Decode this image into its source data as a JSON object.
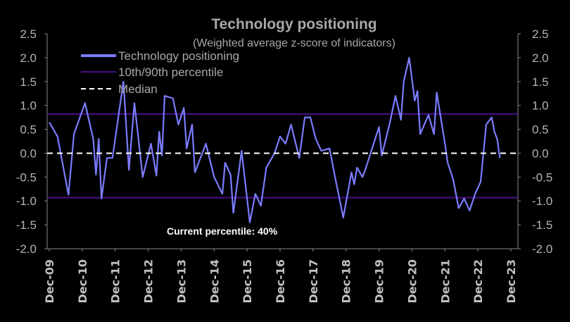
{
  "chart_data": {
    "type": "line",
    "title": "Technology positioning",
    "subtitle": "(Weighted average z-score of indicators)",
    "ylim": [
      -2.0,
      2.5
    ],
    "yticks": [
      "2.5",
      "2.0",
      "1.5",
      "1.0",
      "0.5",
      "0.0",
      "-0.5",
      "-1.0",
      "-1.5",
      "-2.0"
    ],
    "ytick_values": [
      2.5,
      2.0,
      1.5,
      1.0,
      0.5,
      0.0,
      -0.5,
      -1.0,
      -1.5,
      -2.0
    ],
    "xticks": [
      "Dec-09",
      "Dec-10",
      "Dec-11",
      "Dec-12",
      "Dec-13",
      "Dec-14",
      "Dec-15",
      "Dec-16",
      "Dec-17",
      "Dec-18",
      "Dec-19",
      "Dec-20",
      "Dec-21",
      "Dec-22",
      "Dec-23"
    ],
    "dual_y_axis": true,
    "grid": false,
    "legend_placement": "top-left",
    "legend": [
      "Technology positioning",
      "10th/90th percentile",
      "Median"
    ],
    "colors": {
      "series": "#7b7cff",
      "percentile": "#4b0f8a",
      "median": "#ffffff",
      "background": "#000000",
      "text": "#a8a8a8"
    },
    "annotation": "Current percentile: 40%",
    "percentile_10": -0.93,
    "percentile_90": 0.82,
    "median": 0.0,
    "series": [
      {
        "name": "Technology positioning",
        "x": [
          "2009-12",
          "2010-03",
          "2010-07",
          "2010-09",
          "2011-01",
          "2011-04",
          "2011-05",
          "2011-06",
          "2011-07",
          "2011-09",
          "2011-11",
          "2012-03",
          "2012-05",
          "2012-07",
          "2012-10",
          "2013-01",
          "2013-03",
          "2013-04",
          "2013-05",
          "2013-06",
          "2013-09",
          "2013-11",
          "2014-01",
          "2014-02",
          "2014-04",
          "2014-05",
          "2014-09",
          "2014-12",
          "2015-03",
          "2015-04",
          "2015-06",
          "2015-07",
          "2015-10",
          "2016-01",
          "2016-03",
          "2016-05",
          "2016-07",
          "2016-10",
          "2016-12",
          "2017-02",
          "2017-04",
          "2017-07",
          "2017-09",
          "2017-11",
          "2018-01",
          "2018-03",
          "2018-06",
          "2018-08",
          "2018-11",
          "2019-02",
          "2019-03",
          "2019-04",
          "2019-06",
          "2019-07",
          "2019-12",
          "2020-01",
          "2020-04",
          "2020-06",
          "2020-08",
          "2020-09",
          "2020-11",
          "2021-01",
          "2021-02",
          "2021-03",
          "2021-06",
          "2021-08",
          "2021-09",
          "2021-12",
          "2022-01",
          "2022-03",
          "2022-05",
          "2022-07",
          "2022-09",
          "2022-11",
          "2023-01",
          "2023-03",
          "2023-05",
          "2023-06",
          "2023-07",
          "2023-08"
        ],
        "values": [
          0.65,
          0.35,
          -0.87,
          0.4,
          1.05,
          0.3,
          -0.45,
          0.3,
          -0.95,
          -0.1,
          -0.1,
          1.5,
          -0.35,
          1.05,
          -0.5,
          0.2,
          -0.47,
          0.45,
          -0.05,
          1.2,
          1.15,
          0.6,
          0.95,
          0.1,
          0.6,
          -0.4,
          0.2,
          -0.5,
          -0.85,
          -0.2,
          -0.45,
          -1.25,
          0.05,
          -1.45,
          -0.85,
          -1.1,
          -0.3,
          0.0,
          0.35,
          0.2,
          0.6,
          -0.1,
          0.75,
          0.75,
          0.3,
          0.05,
          0.1,
          -0.5,
          -1.35,
          -0.4,
          -0.65,
          -0.3,
          -0.5,
          -0.35,
          0.55,
          -0.05,
          0.65,
          1.2,
          0.7,
          1.5,
          2.0,
          1.1,
          1.3,
          0.4,
          0.8,
          0.4,
          1.27,
          0.2,
          -0.2,
          -0.55,
          -1.15,
          -0.95,
          -1.2,
          -0.85,
          -0.6,
          0.6,
          0.75,
          0.45,
          0.3,
          -0.1
        ]
      }
    ]
  }
}
